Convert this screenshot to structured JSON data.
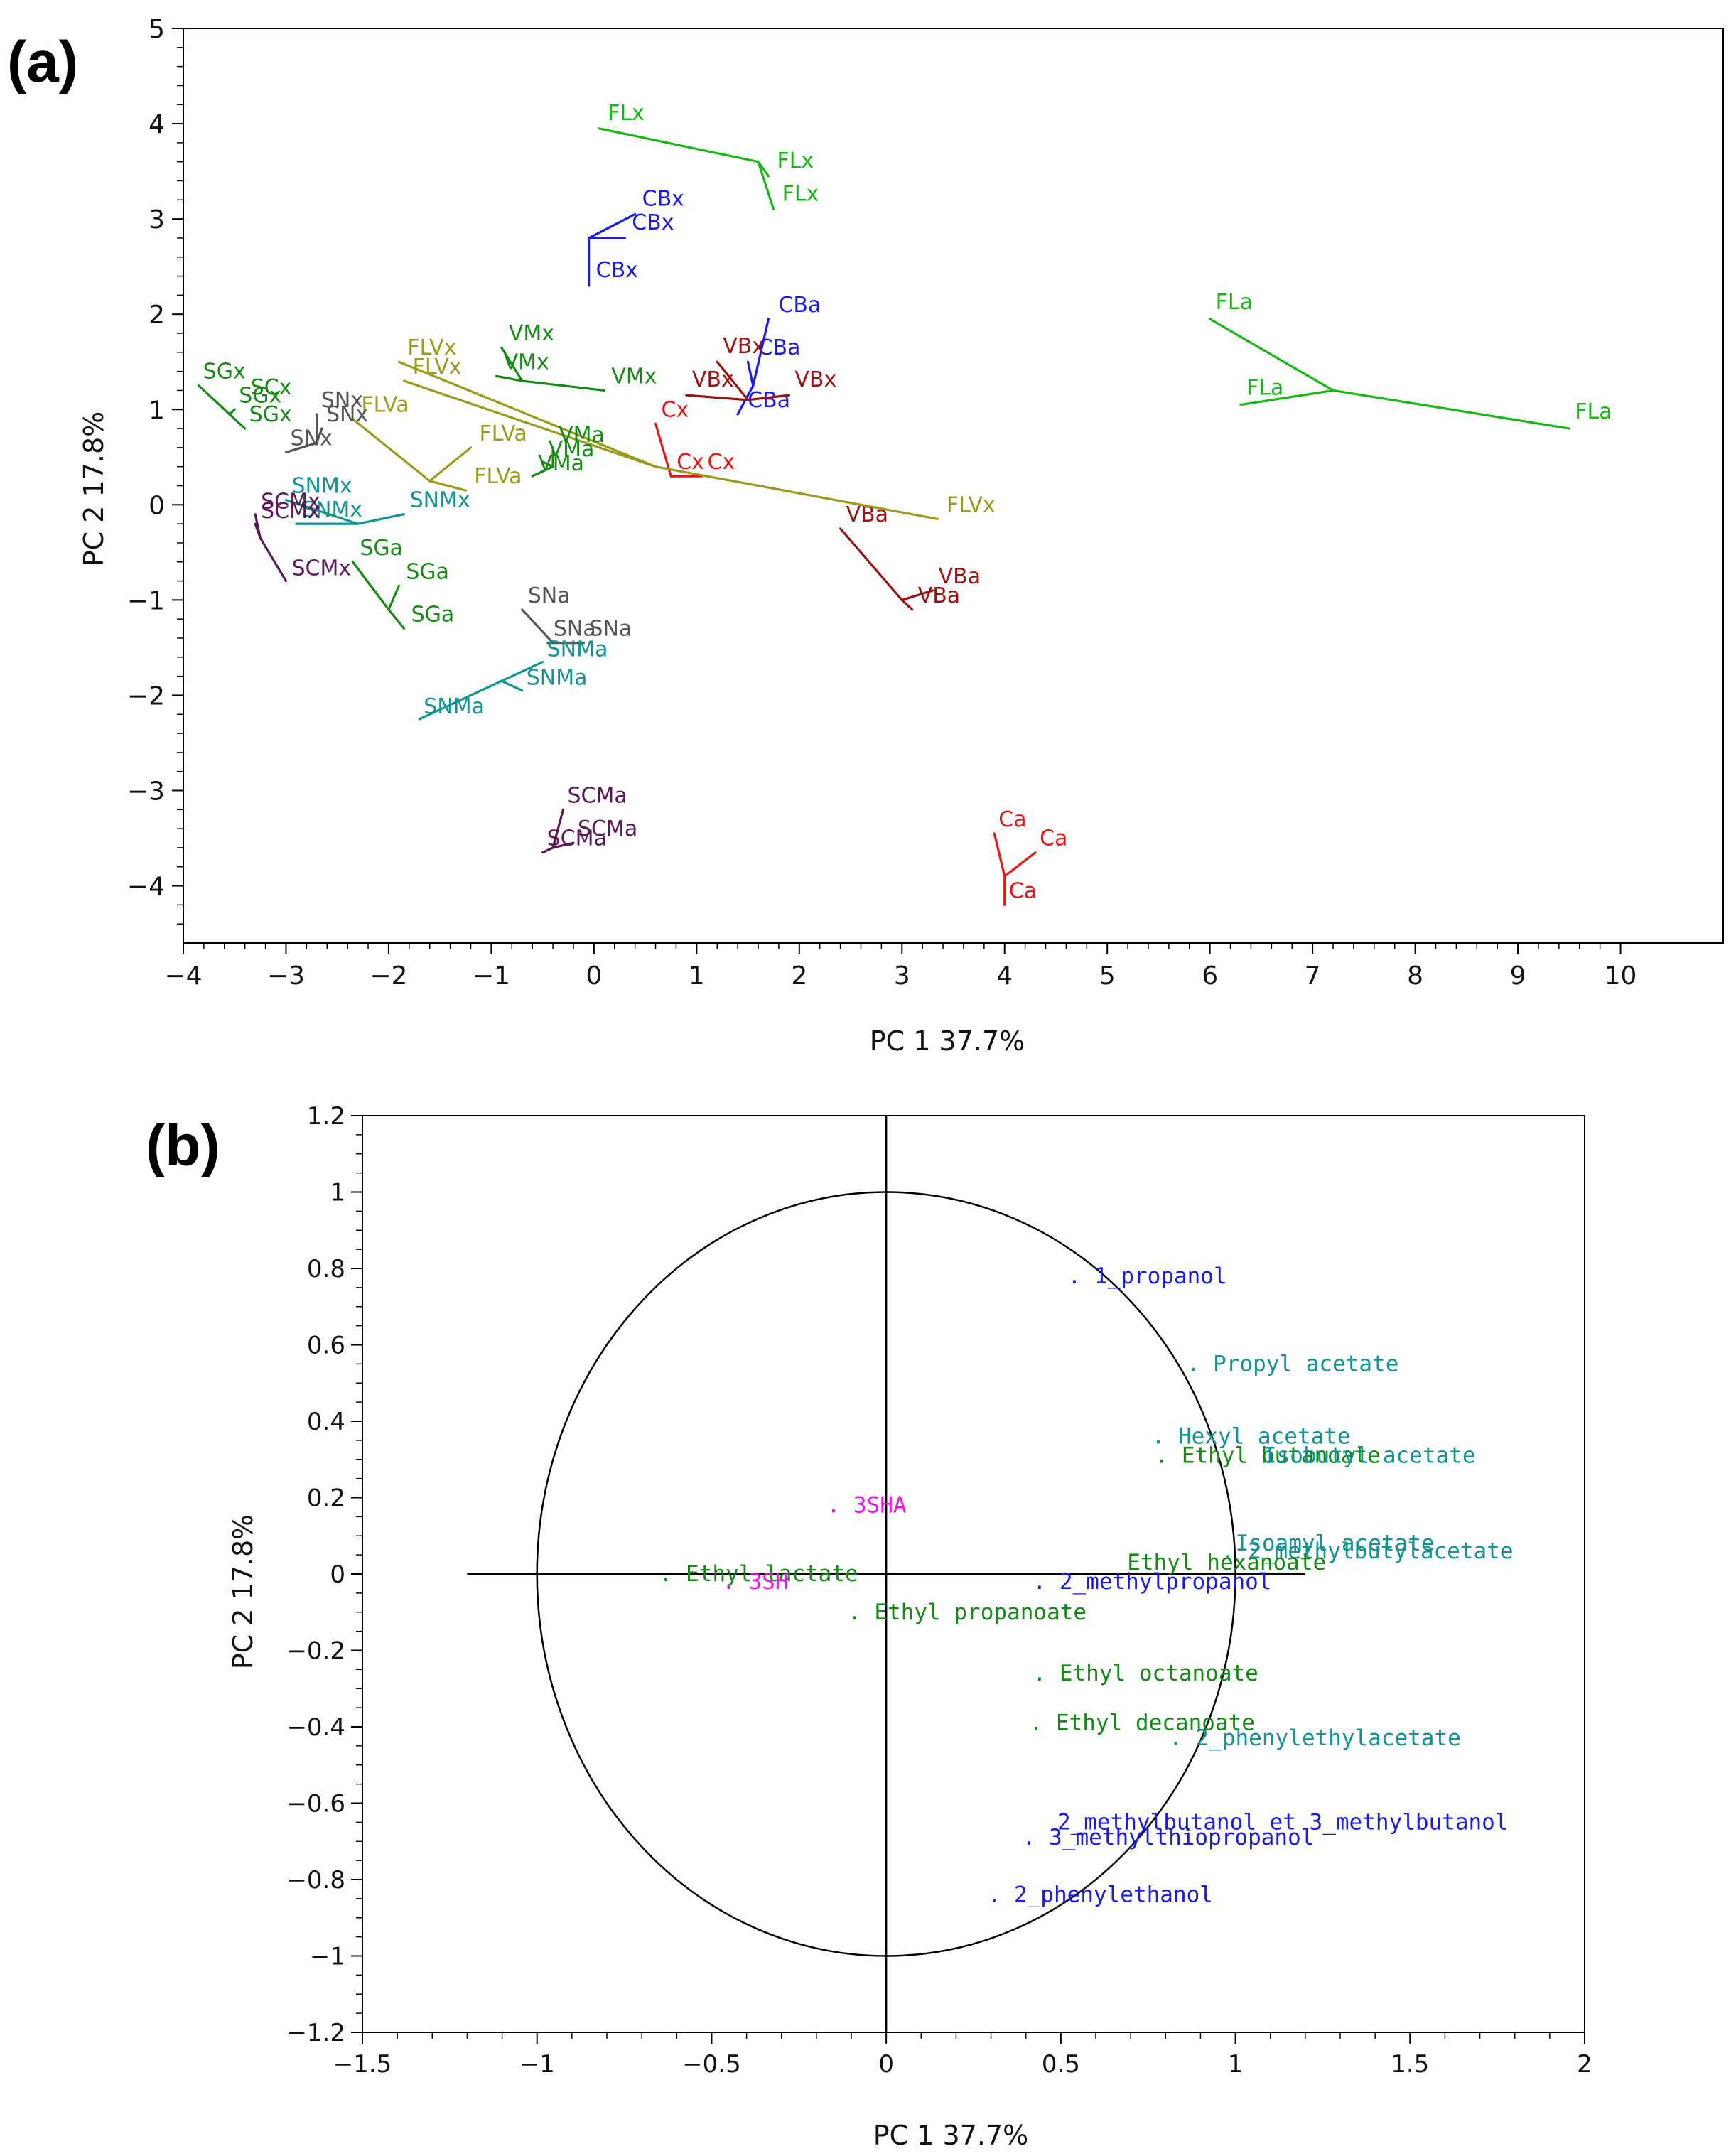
{
  "chart_data": [
    {
      "type": "scatter",
      "panel": "(a)",
      "xlabel": "PC 1  37.7%",
      "ylabel": "PC 2  17.8%",
      "xlim": [
        -4,
        11
      ],
      "ylim": [
        -4.6,
        5
      ],
      "xticks": [
        -4,
        -3,
        -2,
        -1,
        0,
        1,
        2,
        3,
        4,
        5,
        6,
        7,
        8,
        9,
        10
      ],
      "yticks": [
        -4,
        -3,
        -2,
        -1,
        0,
        1,
        2,
        3,
        4,
        5
      ],
      "colors": {
        "green": "#17b817",
        "blue": "#1a1aee",
        "darkred": "#9a1313",
        "red": "#ee1414",
        "olive": "#9a9a1c",
        "darkgreen": "#158a15",
        "gray": "#555555",
        "teal": "#139393",
        "purple": "#5a1a5a"
      },
      "groups": [
        {
          "color": "#17b817",
          "center": [
            1.6,
            3.6
          ],
          "points": [
            {
              "label": "FLx",
              "x": 0.05,
              "y": 3.95
            },
            {
              "label": "FLx",
              "x": 1.7,
              "y": 3.45
            },
            {
              "label": "FLx",
              "x": 1.75,
              "y": 3.1
            }
          ]
        },
        {
          "color": "#17b817",
          "center": [
            7.2,
            1.2
          ],
          "points": [
            {
              "label": "FLa",
              "x": 6.0,
              "y": 1.95
            },
            {
              "label": "FLa",
              "x": 6.3,
              "y": 1.05
            },
            {
              "label": "FLa",
              "x": 9.5,
              "y": 0.8
            }
          ]
        },
        {
          "color": "#1a1aee",
          "center": [
            -0.05,
            2.8
          ],
          "points": [
            {
              "label": "CBx",
              "x": 0.4,
              "y": 3.05
            },
            {
              "label": "CBx",
              "x": 0.3,
              "y": 2.8
            },
            {
              "label": "CBx",
              "x": -0.05,
              "y": 2.3
            }
          ]
        },
        {
          "color": "#1a1aee",
          "center": [
            1.55,
            1.25
          ],
          "points": [
            {
              "label": "CBa",
              "x": 1.7,
              "y": 1.95
            },
            {
              "label": "CBa",
              "x": 1.5,
              "y": 1.5
            },
            {
              "label": "CBa",
              "x": 1.4,
              "y": 0.95
            }
          ]
        },
        {
          "color": "#9a1313",
          "center": [
            1.5,
            1.1
          ],
          "points": [
            {
              "label": "VBx",
              "x": 1.2,
              "y": 1.5
            },
            {
              "label": "VBx",
              "x": 0.9,
              "y": 1.15
            },
            {
              "label": "VBx",
              "x": 1.9,
              "y": 1.15
            }
          ]
        },
        {
          "color": "#9a1313",
          "center": [
            3.0,
            -1.0
          ],
          "points": [
            {
              "label": "VBa",
              "x": 2.4,
              "y": -0.25
            },
            {
              "label": "VBa",
              "x": 3.3,
              "y": -0.9
            },
            {
              "label": "VBa",
              "x": 3.1,
              "y": -1.1
            }
          ]
        },
        {
          "color": "#ee1414",
          "center": [
            0.75,
            0.3
          ],
          "points": [
            {
              "label": "Cx",
              "x": 0.6,
              "y": 0.85
            },
            {
              "label": "Cx",
              "x": 0.75,
              "y": 0.3
            },
            {
              "label": "Cx",
              "x": 1.05,
              "y": 0.3
            }
          ]
        },
        {
          "color": "#ee1414",
          "center": [
            4.0,
            -3.9
          ],
          "points": [
            {
              "label": "Ca",
              "x": 3.9,
              "y": -3.45
            },
            {
              "label": "Ca",
              "x": 4.3,
              "y": -3.65
            },
            {
              "label": "Ca",
              "x": 4.0,
              "y": -4.2
            }
          ]
        },
        {
          "color": "#9a9a1c",
          "center": [
            0.6,
            0.4
          ],
          "points": [
            {
              "label": "FLVx",
              "x": -1.9,
              "y": 1.5
            },
            {
              "label": "FLVx",
              "x": -1.85,
              "y": 1.3
            },
            {
              "label": "FLVx",
              "x": 3.35,
              "y": -0.15
            }
          ]
        },
        {
          "color": "#9a9a1c",
          "center": [
            -1.6,
            0.25
          ],
          "points": [
            {
              "label": "FLVa",
              "x": -2.35,
              "y": 0.9
            },
            {
              "label": "FLVa",
              "x": -1.2,
              "y": 0.6
            },
            {
              "label": "FLVa",
              "x": -1.25,
              "y": 0.15
            }
          ]
        },
        {
          "color": "#158a15",
          "center": [
            -0.7,
            1.3
          ],
          "points": [
            {
              "label": "VMx",
              "x": -0.9,
              "y": 1.65
            },
            {
              "label": "VMx",
              "x": -0.95,
              "y": 1.35
            },
            {
              "label": "VMx",
              "x": 0.1,
              "y": 1.2
            }
          ]
        },
        {
          "color": "#158a15",
          "center": [
            -0.4,
            0.4
          ],
          "points": [
            {
              "label": "VMa",
              "x": -0.4,
              "y": 0.6
            },
            {
              "label": "VMa",
              "x": -0.5,
              "y": 0.45
            },
            {
              "label": "VMa",
              "x": -0.6,
              "y": 0.3
            }
          ]
        },
        {
          "color": "#158a15",
          "center": [
            -3.55,
            0.95
          ],
          "points": [
            {
              "label": "SGx",
              "x": -3.85,
              "y": 1.25
            },
            {
              "label": "SGx",
              "x": -3.5,
              "y": 1.0
            },
            {
              "label": "SGx",
              "x": -3.4,
              "y": 0.8
            }
          ]
        },
        {
          "color": "#158a15",
          "center": [
            -2.0,
            -1.1
          ],
          "points": [
            {
              "label": "SGa",
              "x": -2.35,
              "y": -0.6
            },
            {
              "label": "SGa",
              "x": -1.9,
              "y": -0.85
            },
            {
              "label": "SGa",
              "x": -1.85,
              "y": -1.3
            }
          ]
        },
        {
          "color": "#555555",
          "center": [
            -2.7,
            0.65
          ],
          "points": [
            {
              "label": "SNx",
              "x": -2.7,
              "y": 0.95
            },
            {
              "label": "SNx",
              "x": -2.65,
              "y": 0.8
            },
            {
              "label": "SNx",
              "x": -3.0,
              "y": 0.55
            }
          ]
        },
        {
          "color": "#555555",
          "center": [
            -0.4,
            -1.45
          ],
          "points": [
            {
              "label": "SNa",
              "x": -0.7,
              "y": -1.1
            },
            {
              "label": "SNa",
              "x": -0.45,
              "y": -1.45
            },
            {
              "label": "SNa",
              "x": -0.1,
              "y": -1.45
            }
          ]
        },
        {
          "color": "#139393",
          "center": [
            -2.3,
            -0.2
          ],
          "points": [
            {
              "label": "SNMx",
              "x": -3.0,
              "y": 0.05
            },
            {
              "label": "SNMx",
              "x": -1.85,
              "y": -0.1
            },
            {
              "label": "SNMx",
              "x": -2.9,
              "y": -0.2
            }
          ]
        },
        {
          "color": "#139393",
          "center": [
            -0.9,
            -1.85
          ],
          "points": [
            {
              "label": "SNMa",
              "x": -1.7,
              "y": -2.25
            },
            {
              "label": "SNMa",
              "x": -0.7,
              "y": -1.95
            },
            {
              "label": "SNMa",
              "x": -0.5,
              "y": -1.65
            }
          ]
        },
        {
          "color": "#5a1a5a",
          "center": [
            -3.25,
            -0.35
          ],
          "points": [
            {
              "label": "SCMx",
              "x": -3.3,
              "y": -0.1
            },
            {
              "label": "SCMx",
              "x": -3.3,
              "y": -0.2
            },
            {
              "label": "SCMx",
              "x": -3.0,
              "y": -0.8
            }
          ]
        },
        {
          "color": "#5a1a5a",
          "center": [
            -0.4,
            -3.6
          ],
          "points": [
            {
              "label": "SCMa",
              "x": -0.3,
              "y": -3.2
            },
            {
              "label": "SCMa",
              "x": -0.2,
              "y": -3.55
            },
            {
              "label": "SCMa",
              "x": -0.5,
              "y": -3.65
            }
          ]
        },
        {
          "color": "#158a15",
          "center": [
            -3.45,
            0.95
          ],
          "points": [
            {
              "label": "SCx",
              "x": -3.4,
              "y": 1.1
            }
          ]
        }
      ]
    },
    {
      "type": "scatter",
      "panel": "(b)",
      "xlabel": "PC 1  37.7%",
      "ylabel": "PC 2  17.8%",
      "xlim": [
        -1.5,
        2
      ],
      "ylim": [
        -1.2,
        1.2
      ],
      "xticks": [
        -1.5,
        -1,
        -0.5,
        0,
        0.5,
        1,
        1.5,
        2
      ],
      "yticks": [
        -1.2,
        -1,
        -0.8,
        -0.6,
        -0.4,
        -0.2,
        0,
        0.2,
        0.4,
        0.6,
        0.8,
        1,
        1.2
      ],
      "circle_radius": 1,
      "crosshair": {
        "x": [
          -1.2,
          1.2
        ],
        "y": [
          -1.2,
          1.2
        ]
      },
      "colors": {
        "blue": "#1a1aee",
        "teal": "#139393",
        "green": "#158a15",
        "magenta": "#ee11ee"
      },
      "variables": [
        {
          "label": ". 1_propanol",
          "x": 0.52,
          "y": 0.78,
          "color": "#1a1aee"
        },
        {
          "label": ". Propyl acetate",
          "x": 0.86,
          "y": 0.55,
          "color": "#139393"
        },
        {
          "label": ". Hexyl acetate",
          "x": 0.76,
          "y": 0.36,
          "color": "#139393"
        },
        {
          "label": ". Ethyl butanoate",
          "x": 0.77,
          "y": 0.31,
          "color": "#158a15"
        },
        {
          "label": "Isobutyl acetate",
          "x": 1.08,
          "y": 0.31,
          "color": "#139393"
        },
        {
          "label": ". 3SHA",
          "x": -0.17,
          "y": 0.18,
          "color": "#ee11ee"
        },
        {
          "label": "Isoamyl acetate",
          "x": 1.0,
          "y": 0.08,
          "color": "#139393"
        },
        {
          "label": ". 2_methylbutylacetate",
          "x": 0.96,
          "y": 0.06,
          "color": "#139393"
        },
        {
          "label": "Ethyl hexanoate",
          "x": 0.69,
          "y": 0.03,
          "color": "#158a15"
        },
        {
          "label": ". 2_methylpropanol",
          "x": 0.42,
          "y": -0.02,
          "color": "#1a1aee"
        },
        {
          "label": ". Ethyl lactate",
          "x": -0.65,
          "y": 0.0,
          "color": "#158a15"
        },
        {
          "label": ". 3SH",
          "x": -0.47,
          "y": -0.02,
          "color": "#ee11ee"
        },
        {
          "label": ". Ethyl propanoate",
          "x": -0.11,
          "y": -0.1,
          "color": "#158a15"
        },
        {
          "label": ". Ethyl octanoate",
          "x": 0.42,
          "y": -0.26,
          "color": "#158a15"
        },
        {
          "label": ". Ethyl decanoate",
          "x": 0.41,
          "y": -0.39,
          "color": "#158a15"
        },
        {
          "label": ". 2_phenylethylacetate",
          "x": 0.81,
          "y": -0.43,
          "color": "#139393"
        },
        {
          "label": "2_methylbutanol et 3_methylbutanol",
          "x": 0.49,
          "y": -0.65,
          "color": "#1a1aee"
        },
        {
          "label": ". 3_methylthiopropanol",
          "x": 0.39,
          "y": -0.69,
          "color": "#1a1aee"
        },
        {
          "label": ". 2_phenylethanol",
          "x": 0.29,
          "y": -0.84,
          "color": "#1a1aee"
        }
      ]
    }
  ]
}
